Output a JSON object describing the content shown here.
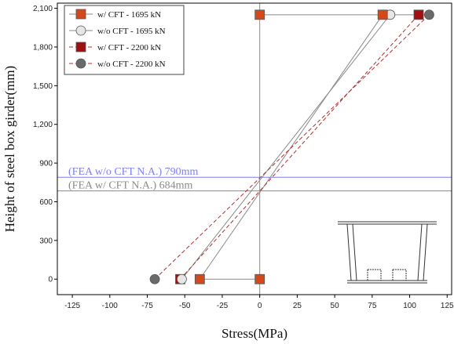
{
  "chart_data": {
    "type": "line",
    "xlabel": "Stress(MPa)",
    "ylabel": "Height of steel box girder(mm)",
    "xlim": [
      -135,
      128
    ],
    "ylim": [
      -120,
      2140
    ],
    "xticks": [
      -125,
      -100,
      -75,
      -50,
      -25,
      0,
      25,
      50,
      75,
      100,
      125
    ],
    "yticks": [
      0,
      300,
      600,
      900,
      1200,
      1500,
      1800,
      2100
    ],
    "ytick_labels": [
      "0",
      "300",
      "600",
      "900",
      "1,200",
      "1,500",
      "1,800",
      "2,100"
    ],
    "grid": false,
    "legend_position": "top-left",
    "series": [
      {
        "name": "w/   CFT - 1695 kN",
        "color": "#d24a1c",
        "marker": "square",
        "line": "solid",
        "line_color": "#8a8a8a",
        "x": [
          -40,
          82
        ],
        "y": [
          0,
          2050
        ]
      },
      {
        "name": "w/o CFT - 1695 kN",
        "color": "#e6e6e6",
        "marker": "circle",
        "line": "solid",
        "line_color": "#8a8a8a",
        "x": [
          -52,
          87
        ],
        "y": [
          0,
          2050
        ]
      },
      {
        "name": "w/   CFT - 2200 kN",
        "color": "#a01010",
        "marker": "square",
        "line": "dashed",
        "line_color": "#b03030",
        "x": [
          -53,
          106
        ],
        "y": [
          0,
          2050
        ]
      },
      {
        "name": "w/o CFT - 2200 kN",
        "color": "#6a6a6a",
        "marker": "circle",
        "line": "dashed",
        "line_color": "#b03030",
        "x": [
          -70,
          113
        ],
        "y": [
          0,
          2050
        ]
      }
    ],
    "extra_markers": [
      {
        "series": 0,
        "x": 0,
        "y": 0
      },
      {
        "series": 0,
        "x": 0,
        "y": 2050
      }
    ],
    "reference_lines": [
      {
        "orientation": "horizontal",
        "y": 790,
        "color": "#7f7ff5",
        "label": "(FEA w/o CFT N.A.) 790mm"
      },
      {
        "orientation": "horizontal",
        "y": 684,
        "color": "#8a8a8a",
        "label": "(FEA w/   CFT N.A.) 684mm"
      },
      {
        "orientation": "vertical",
        "x": 0,
        "color": "#8a8a8a"
      }
    ]
  }
}
